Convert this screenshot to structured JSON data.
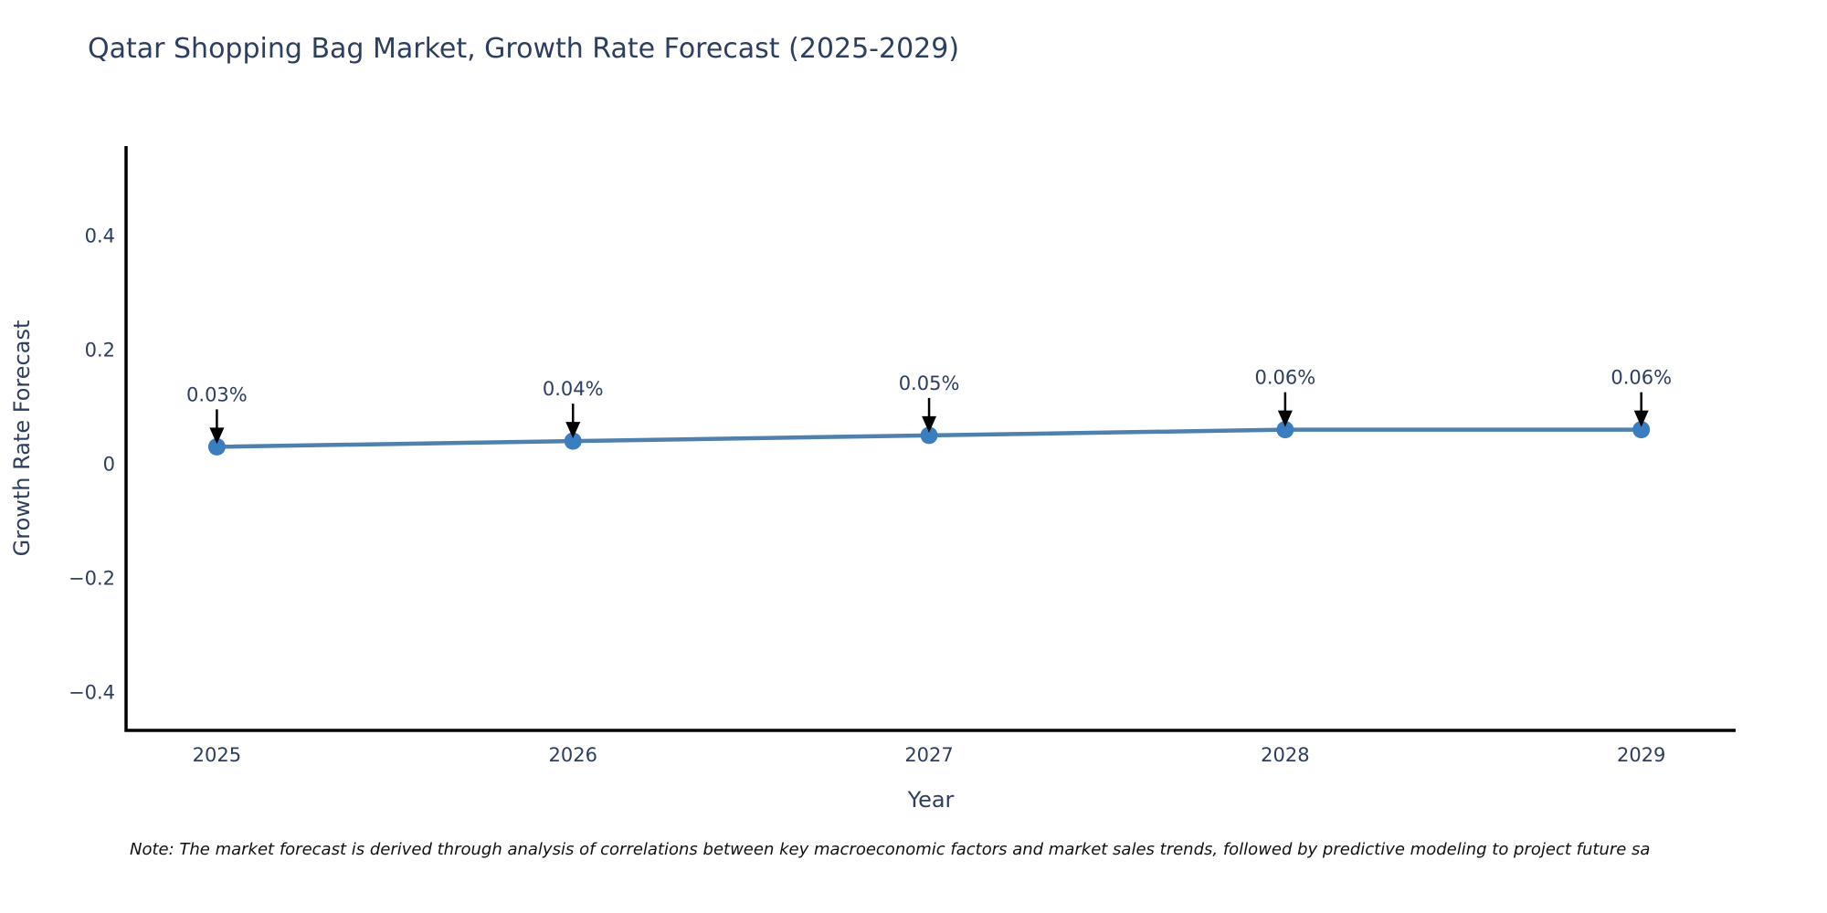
{
  "page": {
    "background": "#ffffff"
  },
  "chart_data": {
    "type": "line",
    "title": "Qatar Shopping Bag Market, Growth Rate Forecast (2025-2029)",
    "xlabel": "Year",
    "ylabel": "Growth Rate Forecast",
    "x": [
      2025,
      2026,
      2027,
      2028,
      2029
    ],
    "x_tick_labels": [
      "2025",
      "2026",
      "2027",
      "2028",
      "2029"
    ],
    "series": [
      {
        "name": "Growth Rate Forecast",
        "values": [
          0.03,
          0.04,
          0.05,
          0.06,
          0.06
        ]
      }
    ],
    "point_labels": [
      "0.03%",
      "0.04%",
      "0.05%",
      "0.06%",
      "0.06%"
    ],
    "yticks": [
      0.4,
      0.2,
      0,
      -0.2,
      -0.4
    ],
    "ytick_labels": [
      "0.4",
      "0.2",
      "0",
      "−0.2",
      "−0.4"
    ],
    "ylim": [
      -0.467,
      0.557
    ],
    "xlim": [
      2024.745,
      2029.265
    ],
    "grid": false,
    "legend": "none",
    "annotation_style": "down-arrow",
    "colors": {
      "line": "#4e81ad",
      "marker": "#3b7ec0",
      "axis": "#000000",
      "text": "#2d3f5e",
      "annotation_text": "#2d3f5e",
      "annotation_arrow": "#000000"
    }
  },
  "note": {
    "text": "Note: The market forecast is derived through analysis of correlations between key macroeconomic factors and market sales trends, followed by predictive modeling to project future sa"
  }
}
